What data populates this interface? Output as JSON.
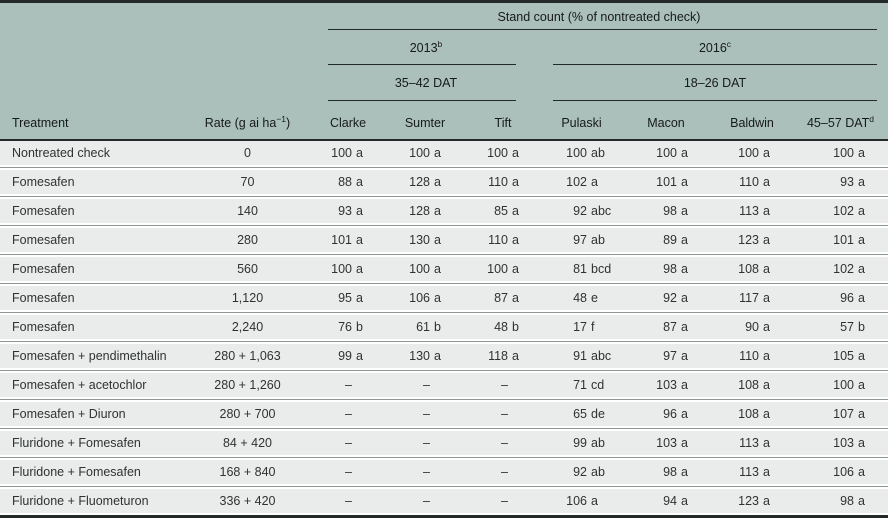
{
  "colors": {
    "header_bg": "#abbfbb",
    "row_bg": "#eaecec",
    "rule_dark": "#24292a",
    "rule_light": "#8d9894",
    "text_dark": "#161b1a",
    "text_body": "#2e3331"
  },
  "table": {
    "title_span": "Stand count (% of nontreated check)",
    "group_2013": {
      "text": "2013",
      "sup": "b"
    },
    "group_2016": {
      "text": "2016",
      "sup": "c"
    },
    "dat_2013": "35–42 DAT",
    "dat_2016": "18–26 DAT",
    "col_treatment": "Treatment",
    "col_rate": {
      "prefix": "Rate (g ai ha",
      "sup": "−1",
      "suffix": ")"
    },
    "col_sites": [
      "Clarke",
      "Sumter",
      "Tift",
      "Pulaski",
      "Macon",
      "Baldwin"
    ],
    "col_last": {
      "text": "45–57 DAT",
      "sup": "d"
    },
    "rows": [
      {
        "treatment": "Nontreated check",
        "rate": "0",
        "cells": [
          [
            "100",
            "a"
          ],
          [
            "100",
            "a"
          ],
          [
            "100",
            "a"
          ],
          [
            "100",
            "ab"
          ],
          [
            "100",
            "a"
          ],
          [
            "100",
            "a"
          ],
          [
            "100",
            "a"
          ]
        ]
      },
      {
        "treatment": "Fomesafen",
        "rate": "70",
        "cells": [
          [
            "88",
            "a"
          ],
          [
            "128",
            "a"
          ],
          [
            "110",
            "a"
          ],
          [
            "102",
            "a"
          ],
          [
            "101",
            "a"
          ],
          [
            "110",
            "a"
          ],
          [
            "93",
            "a"
          ]
        ]
      },
      {
        "treatment": "Fomesafen",
        "rate": "140",
        "cells": [
          [
            "93",
            "a"
          ],
          [
            "128",
            "a"
          ],
          [
            "85",
            "a"
          ],
          [
            "92",
            "abc"
          ],
          [
            "98",
            "a"
          ],
          [
            "113",
            "a"
          ],
          [
            "102",
            "a"
          ]
        ]
      },
      {
        "treatment": "Fomesafen",
        "rate": "280",
        "cells": [
          [
            "101",
            "a"
          ],
          [
            "130",
            "a"
          ],
          [
            "110",
            "a"
          ],
          [
            "97",
            "ab"
          ],
          [
            "89",
            "a"
          ],
          [
            "123",
            "a"
          ],
          [
            "101",
            "a"
          ]
        ]
      },
      {
        "treatment": "Fomesafen",
        "rate": "560",
        "cells": [
          [
            "100",
            "a"
          ],
          [
            "100",
            "a"
          ],
          [
            "100",
            "a"
          ],
          [
            "81",
            "bcd"
          ],
          [
            "98",
            "a"
          ],
          [
            "108",
            "a"
          ],
          [
            "102",
            "a"
          ]
        ]
      },
      {
        "treatment": "Fomesafen",
        "rate": "1,120",
        "cells": [
          [
            "95",
            "a"
          ],
          [
            "106",
            "a"
          ],
          [
            "87",
            "a"
          ],
          [
            "48",
            "e"
          ],
          [
            "92",
            "a"
          ],
          [
            "117",
            "a"
          ],
          [
            "96",
            "a"
          ]
        ]
      },
      {
        "treatment": "Fomesafen",
        "rate": "2,240",
        "cells": [
          [
            "76",
            "b"
          ],
          [
            "61",
            "b"
          ],
          [
            "48",
            "b"
          ],
          [
            "17",
            "f"
          ],
          [
            "87",
            "a"
          ],
          [
            "90",
            "a"
          ],
          [
            "57",
            "b"
          ]
        ]
      },
      {
        "treatment": "Fomesafen + pendimethalin",
        "rate": "280 + 1,063",
        "cells": [
          [
            "99",
            "a"
          ],
          [
            "130",
            "a"
          ],
          [
            "118",
            "a"
          ],
          [
            "91",
            "abc"
          ],
          [
            "97",
            "a"
          ],
          [
            "110",
            "a"
          ],
          [
            "105",
            "a"
          ]
        ]
      },
      {
        "treatment": "Fomesafen + acetochlor",
        "rate": "280 + 1,260",
        "cells": [
          [
            "–",
            ""
          ],
          [
            "–",
            ""
          ],
          [
            "–",
            ""
          ],
          [
            "71",
            "cd"
          ],
          [
            "103",
            "a"
          ],
          [
            "108",
            "a"
          ],
          [
            "100",
            "a"
          ]
        ]
      },
      {
        "treatment": "Fomesafen + Diuron",
        "rate": "280 + 700",
        "cells": [
          [
            "–",
            ""
          ],
          [
            "–",
            ""
          ],
          [
            "–",
            ""
          ],
          [
            "65",
            "de"
          ],
          [
            "96",
            "a"
          ],
          [
            "108",
            "a"
          ],
          [
            "107",
            "a"
          ]
        ]
      },
      {
        "treatment": "Fluridone + Fomesafen",
        "rate": "84 + 420",
        "cells": [
          [
            "–",
            ""
          ],
          [
            "–",
            ""
          ],
          [
            "–",
            ""
          ],
          [
            "99",
            "ab"
          ],
          [
            "103",
            "a"
          ],
          [
            "113",
            "a"
          ],
          [
            "103",
            "a"
          ]
        ]
      },
      {
        "treatment": "Fluridone + Fomesafen",
        "rate": "168 + 840",
        "cells": [
          [
            "–",
            ""
          ],
          [
            "–",
            ""
          ],
          [
            "–",
            ""
          ],
          [
            "92",
            "ab"
          ],
          [
            "98",
            "a"
          ],
          [
            "113",
            "a"
          ],
          [
            "106",
            "a"
          ]
        ]
      },
      {
        "treatment": "Fluridone + Fluometuron",
        "rate": "336 + 420",
        "cells": [
          [
            "–",
            ""
          ],
          [
            "–",
            ""
          ],
          [
            "–",
            ""
          ],
          [
            "106",
            "a"
          ],
          [
            "94",
            "a"
          ],
          [
            "123",
            "a"
          ],
          [
            "98",
            "a"
          ]
        ]
      }
    ]
  }
}
